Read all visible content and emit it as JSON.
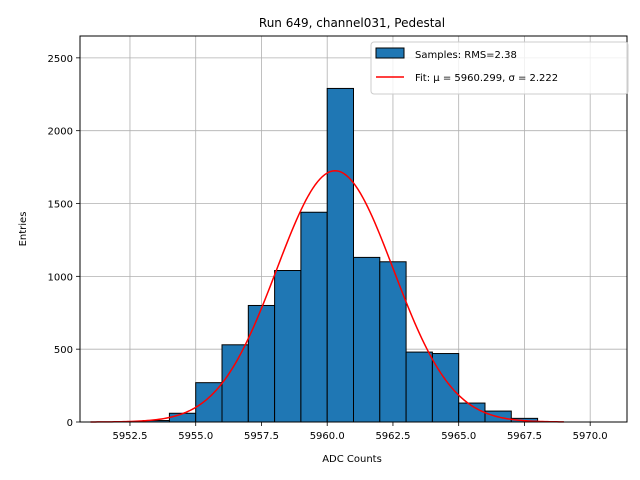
{
  "chart_data": {
    "type": "bar",
    "title": "Run 649, channel031, Pedestal",
    "xlabel": "ADC Counts",
    "ylabel": "Entries",
    "xlim": [
      5950.6,
      5971.4
    ],
    "ylim": [
      0,
      2650
    ],
    "grid": true,
    "legend_position": "top-right",
    "x_ticks": [
      "5952.5",
      "5955.0",
      "5957.5",
      "5960.0",
      "5962.5",
      "5965.0",
      "5967.5",
      "5970.0"
    ],
    "x_tick_values": [
      5952.5,
      5955.0,
      5957.5,
      5960.0,
      5962.5,
      5965.0,
      5967.5,
      5970.0
    ],
    "y_ticks": [
      "0",
      "500",
      "1000",
      "1500",
      "2000",
      "2500"
    ],
    "y_tick_values": [
      0,
      500,
      1000,
      1500,
      2000,
      2500
    ],
    "histogram": {
      "name": "Samples: RMS=2.38",
      "color": "#1f77b4",
      "edge_color": "#000000",
      "bin_edges": [
        5951,
        5952,
        5953,
        5954,
        5955,
        5956,
        5957,
        5958,
        5959,
        5960,
        5961,
        5962,
        5963,
        5964,
        5965,
        5966,
        5967,
        5968,
        5969,
        5970,
        5971
      ],
      "counts": [
        0,
        0,
        10,
        60,
        270,
        530,
        800,
        1040,
        1440,
        2290,
        1130,
        1100,
        480,
        470,
        130,
        75,
        25,
        0,
        0,
        0
      ]
    },
    "fit": {
      "name": "Fit: μ = 5960.299, σ = 2.222",
      "color": "#ff0000",
      "mu": 5960.299,
      "sigma": 2.222,
      "peak": 1725,
      "x_range": [
        5951,
        5969
      ]
    }
  }
}
